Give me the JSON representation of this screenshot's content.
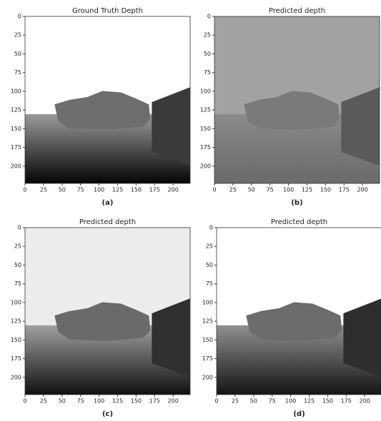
{
  "chart_data": [
    {
      "type": "image",
      "title": "Ground Truth Depth",
      "caption": "(a)",
      "xlim": [
        0,
        223
      ],
      "ylim": [
        0,
        223
      ],
      "y_inverted": true,
      "xticks": [
        0,
        25,
        50,
        75,
        100,
        125,
        150,
        175,
        200
      ],
      "yticks": [
        0,
        25,
        50,
        75,
        100,
        125,
        150,
        175,
        200
      ]
    },
    {
      "type": "image",
      "title": "Predicted depth",
      "caption": "(b)",
      "xlim": [
        0,
        223
      ],
      "ylim": [
        0,
        223
      ],
      "y_inverted": true,
      "xticks": [
        0,
        25,
        50,
        75,
        100,
        125,
        150,
        175,
        200
      ],
      "yticks": [
        0,
        25,
        50,
        75,
        100,
        125,
        150,
        175,
        200
      ]
    },
    {
      "type": "image",
      "title": "Predicted depth",
      "caption": "(c)",
      "xlim": [
        0,
        223
      ],
      "ylim": [
        0,
        223
      ],
      "y_inverted": true,
      "xticks": [
        0,
        25,
        50,
        75,
        100,
        125,
        150,
        175,
        200
      ],
      "yticks": [
        0,
        25,
        50,
        75,
        100,
        125,
        150,
        175,
        200
      ]
    },
    {
      "type": "image",
      "title": "Predicted depth",
      "caption": "(d)",
      "xlim": [
        0,
        223
      ],
      "ylim": [
        0,
        223
      ],
      "y_inverted": true,
      "xticks": [
        0,
        25,
        50,
        75,
        100,
        125,
        150,
        175,
        200
      ],
      "yticks": [
        0,
        25,
        50,
        75,
        100,
        125,
        150,
        175,
        200
      ]
    }
  ]
}
